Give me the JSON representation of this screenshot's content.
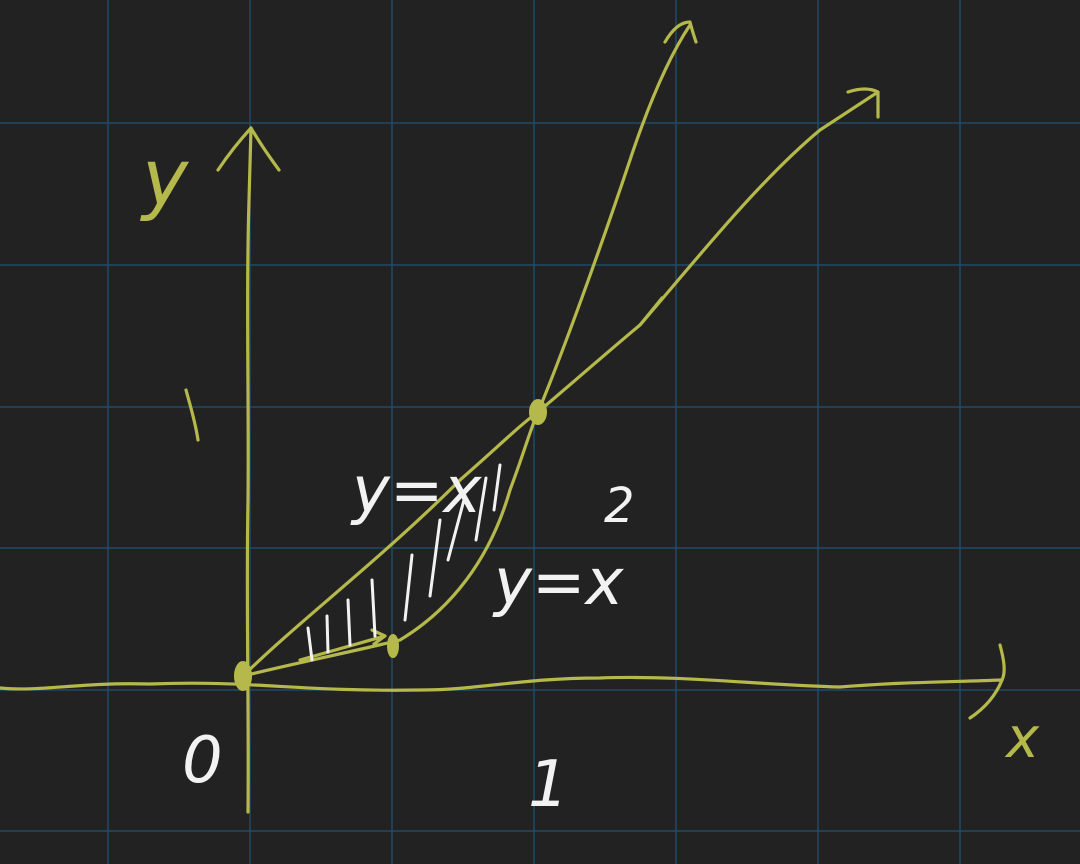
{
  "labels": {
    "y_axis": "y",
    "x_axis": "x",
    "origin": "0",
    "tick_x": "1",
    "tick_y": "1",
    "curve_linear": "y=x",
    "curve_quadratic": "y=x",
    "exponent": "2"
  },
  "colors": {
    "background": "#222222",
    "grid": "#1f4a66",
    "axes_ink": "#b5b84a",
    "annotation_ink": "#f2f2f2"
  }
}
